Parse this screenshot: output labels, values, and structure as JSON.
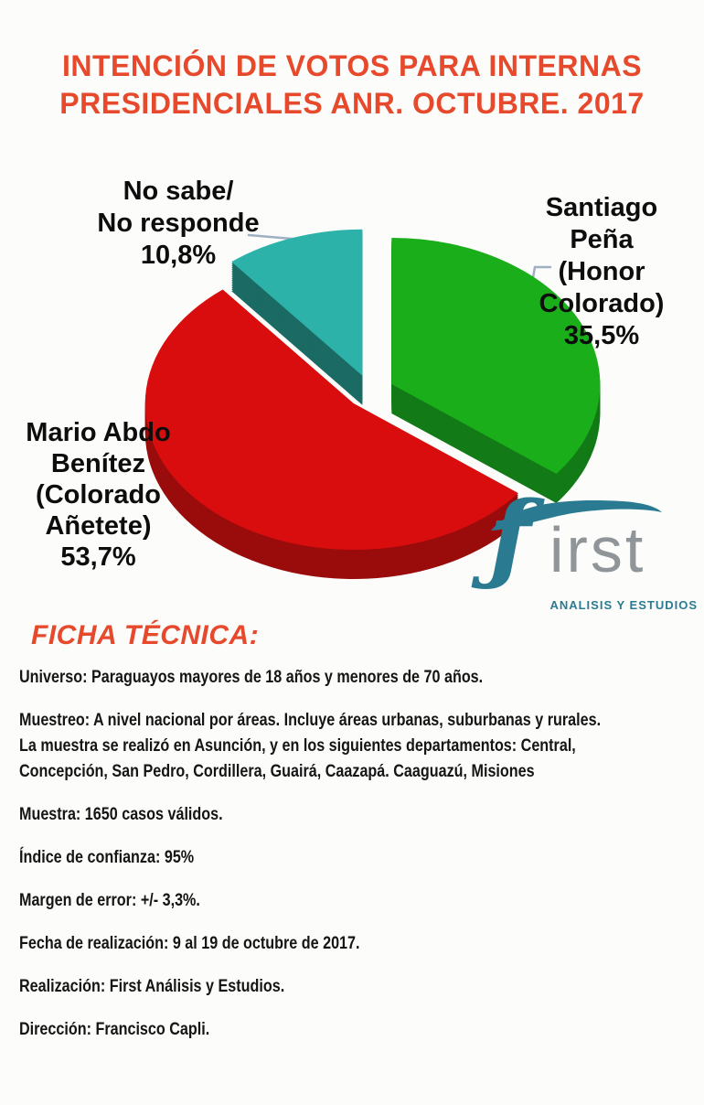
{
  "header": {
    "title_line1": "INTENCIÓN DE VOTOS PARA INTERNAS",
    "title_line2": "PRESIDENCIALES ANR. OCTUBRE. 2017",
    "title_color": "#e6492b"
  },
  "chart_data": {
    "type": "pie",
    "title": "INTENCIÓN DE VOTOS PARA INTERNAS PRESIDENCIALES ANR. OCTUBRE. 2017",
    "style": "3d-exploded",
    "start_angle_deg": -90,
    "direction": "clockwise",
    "slices": [
      {
        "label": "Santiago Peña (Honor Colorado)",
        "value": 35.5,
        "display": "35,5%",
        "color": "#1bae1b",
        "side_color": "#127a16",
        "label_lines": [
          "Santiago",
          "Peña",
          "(Honor",
          "Colorado)",
          "35,5%"
        ]
      },
      {
        "label": "Mario Abdo Benítez (Colorado Añetete)",
        "value": 53.7,
        "display": "53,7%",
        "color": "#d90d0d",
        "side_color": "#9a0c0c",
        "label_lines": [
          "Mario Abdo",
          "Benítez",
          "(Colorado",
          "Añetete)",
          "53,7%"
        ]
      },
      {
        "label": "No sabe/ No responde",
        "value": 10.8,
        "display": "10,8%",
        "color": "#2cb2a8",
        "side_color": "#1b6b64",
        "label_lines": [
          "No sabe/",
          "No responde",
          "10,8%"
        ]
      }
    ],
    "leader_line_color": "#9fb0c4"
  },
  "logo": {
    "f": "ƒ",
    "rest": "irst",
    "tagline": "ANALISIS Y ESTUDIOS",
    "color_primary": "#2a7b92",
    "color_secondary": "#8f9598"
  },
  "ficha": {
    "heading": "FICHA TÉCNICA:",
    "paragraphs": [
      "Universo: Paraguayos mayores de 18 años y menores de 70 años.",
      "Muestreo: A nivel nacional por áreas. Incluye áreas urbanas, suburbanas y rurales.\nLa muestra se realizó en Asunción, y en los siguientes departamentos: Central,\nConcepción, San Pedro, Cordillera, Guairá, Caazapá. Caaguazú, Misiones",
      "Muestra: 1650 casos válidos.",
      "Índice de confianza: 95%",
      "Margen de error: +/- 3,3%.",
      "Fecha de realización: 9 al 19 de octubre de 2017.",
      "Realización: First  Análisis y Estudios.",
      "Dirección: Francisco Capli."
    ]
  }
}
